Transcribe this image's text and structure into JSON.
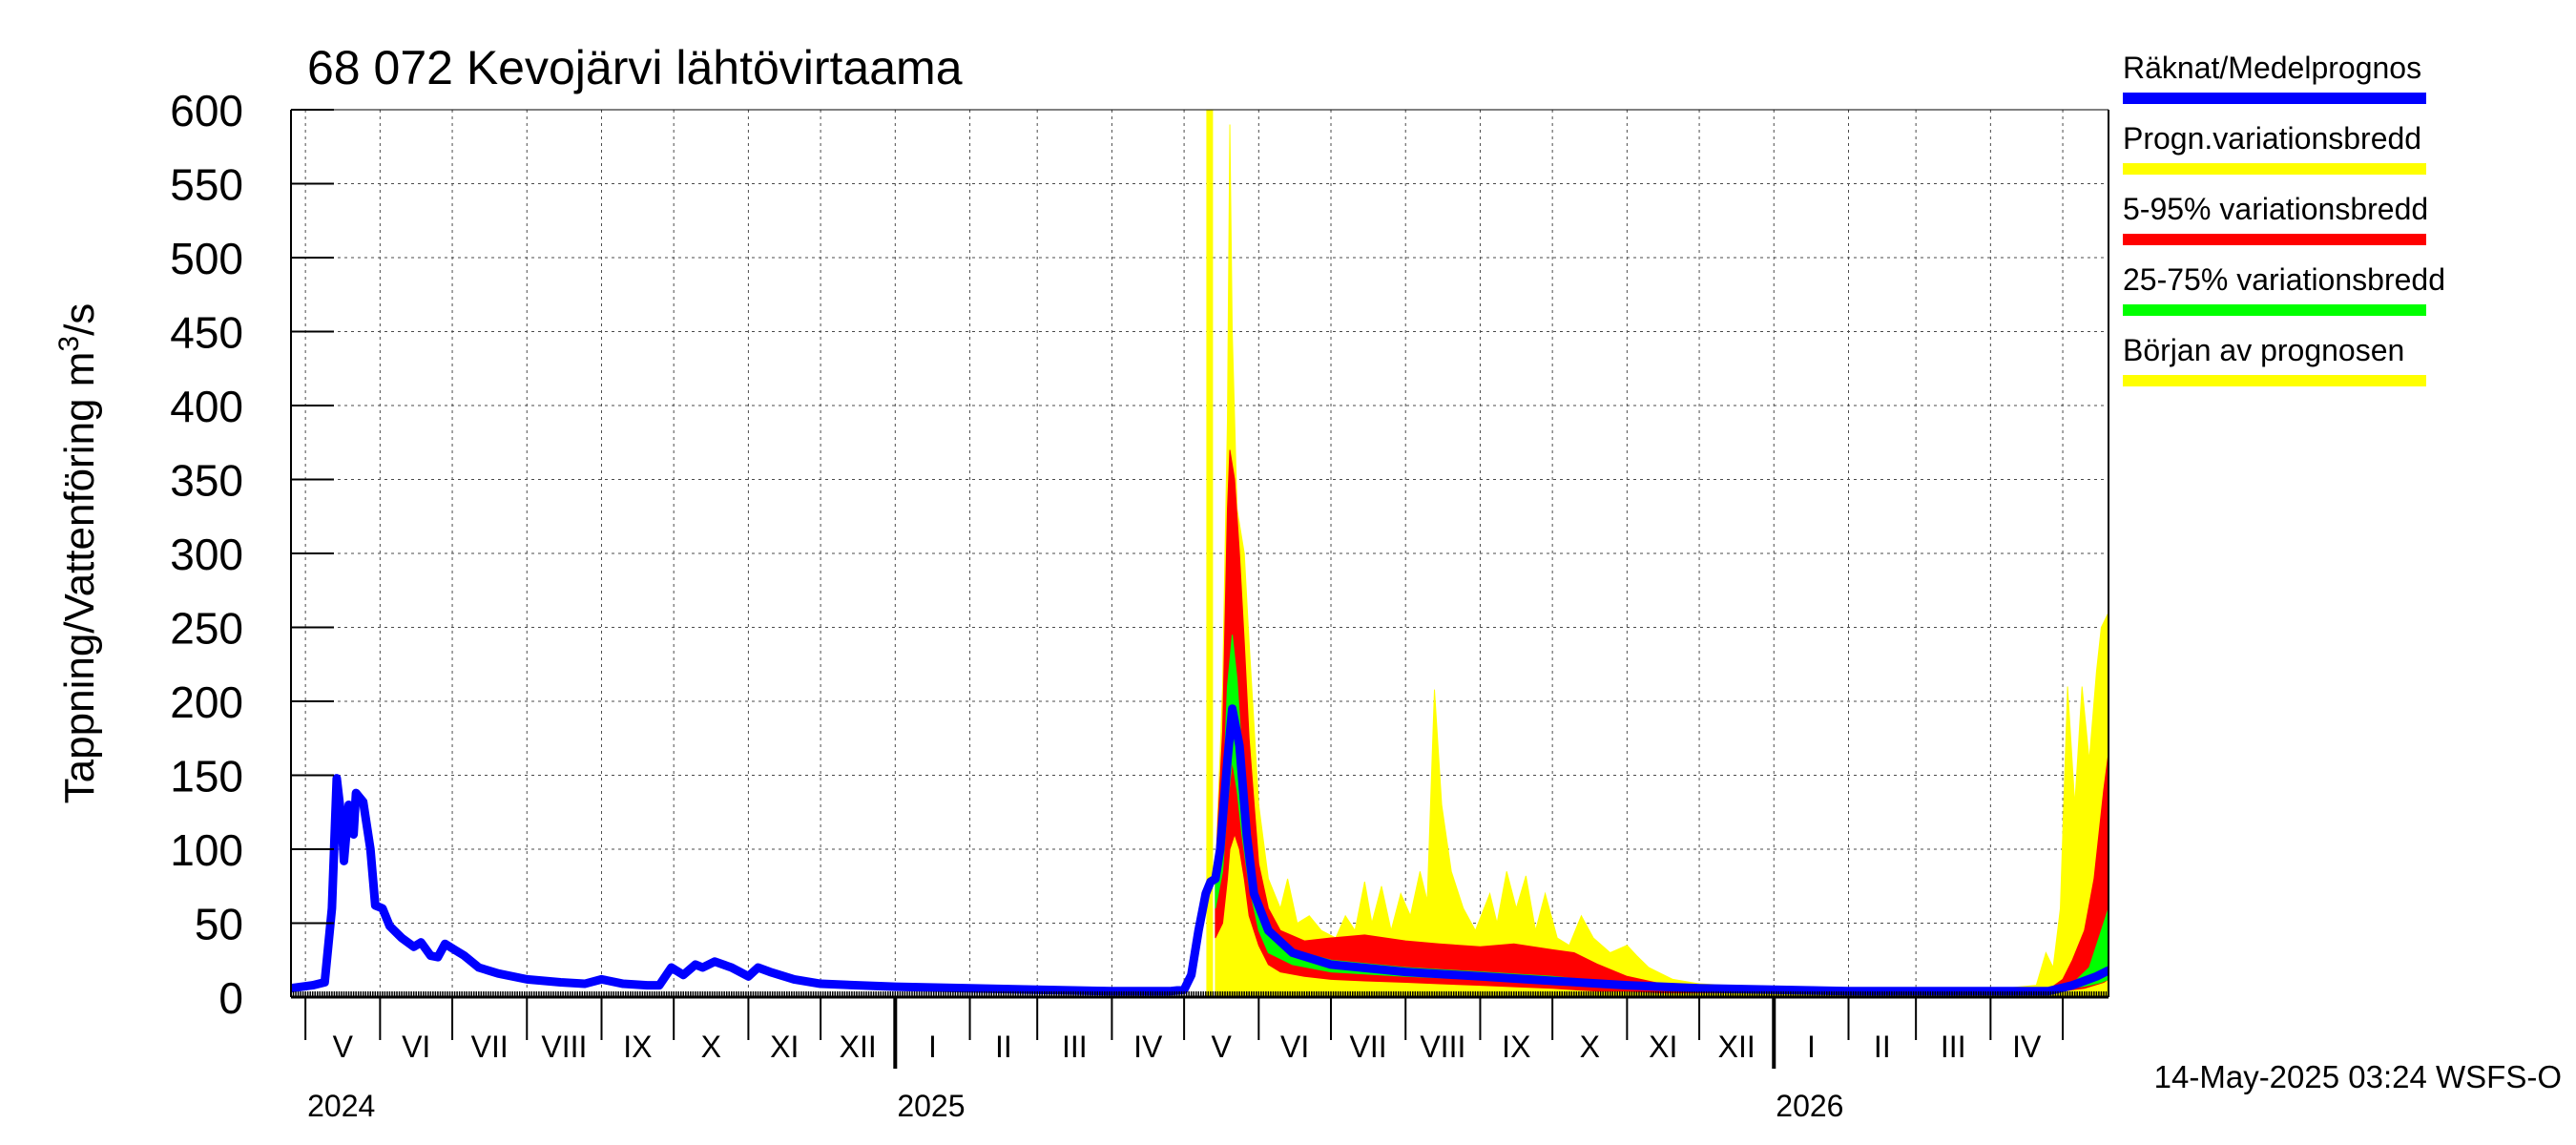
{
  "chart_data": {
    "type": "area",
    "title": "68 072 Kevojärvi lähtövirtaama",
    "ylabel": "Tappning/Vattenföring m³/s",
    "ylim": [
      0,
      600
    ],
    "yticks": [
      0,
      50,
      100,
      150,
      200,
      250,
      300,
      350,
      400,
      450,
      500,
      550,
      600
    ],
    "xlim": [
      "2024-04-25",
      "2026-05-20"
    ],
    "grid": true,
    "month_labels": [
      "V",
      "VI",
      "VII",
      "VIII",
      "IX",
      "X",
      "XI",
      "XII",
      "I",
      "II",
      "III",
      "IV",
      "V",
      "VI",
      "VII",
      "VIII",
      "IX",
      "X",
      "XI",
      "XII",
      "I",
      "II",
      "III",
      "IV"
    ],
    "month_starts": [
      "2024-05-01",
      "2024-06-01",
      "2024-07-01",
      "2024-08-01",
      "2024-09-01",
      "2024-10-01",
      "2024-11-01",
      "2024-12-01",
      "2025-01-01",
      "2025-02-01",
      "2025-03-01",
      "2025-04-01",
      "2025-05-01",
      "2025-06-01",
      "2025-07-01",
      "2025-08-01",
      "2025-09-01",
      "2025-10-01",
      "2025-11-01",
      "2025-12-01",
      "2026-01-01",
      "2026-02-01",
      "2026-03-01",
      "2026-04-01",
      "2026-05-01"
    ],
    "year_labels": [
      {
        "label": "2024",
        "date": "2024-05-01"
      },
      {
        "label": "2025",
        "date": "2025-01-01"
      },
      {
        "label": "2026",
        "date": "2026-01-01"
      }
    ],
    "legend_position": "right",
    "legend": [
      {
        "label": "Räknat/Medelprognos",
        "color": "#0000ff"
      },
      {
        "label": "Progn.variationsbredd",
        "color": "#ffff00"
      },
      {
        "label": "5-95% variationsbredd",
        "color": "#ff0000"
      },
      {
        "label": "25-75% variationsbredd",
        "color": "#00ff00"
      },
      {
        "label": "Början av prognosen",
        "color": "#ffff00"
      }
    ],
    "forecast_start": "2025-05-14",
    "footer": "14-May-2025 03:24 WSFS-O",
    "series": [
      {
        "name": "Räknat/Medelprognos",
        "color": "#0000ff",
        "points": [
          [
            "2024-04-25",
            6
          ],
          [
            "2024-05-04",
            8
          ],
          [
            "2024-05-09",
            10
          ],
          [
            "2024-05-12",
            60
          ],
          [
            "2024-05-14",
            148
          ],
          [
            "2024-05-16",
            120
          ],
          [
            "2024-05-17",
            92
          ],
          [
            "2024-05-19",
            130
          ],
          [
            "2024-05-21",
            110
          ],
          [
            "2024-05-22",
            138
          ],
          [
            "2024-05-25",
            132
          ],
          [
            "2024-05-28",
            100
          ],
          [
            "2024-05-30",
            62
          ],
          [
            "2024-06-02",
            60
          ],
          [
            "2024-06-05",
            48
          ],
          [
            "2024-06-10",
            40
          ],
          [
            "2024-06-15",
            34
          ],
          [
            "2024-06-18",
            37
          ],
          [
            "2024-06-22",
            28
          ],
          [
            "2024-06-25",
            27
          ],
          [
            "2024-06-28",
            36
          ],
          [
            "2024-07-02",
            32
          ],
          [
            "2024-07-06",
            28
          ],
          [
            "2024-07-12",
            20
          ],
          [
            "2024-07-20",
            16
          ],
          [
            "2024-08-01",
            12
          ],
          [
            "2024-08-15",
            10
          ],
          [
            "2024-08-25",
            9
          ],
          [
            "2024-09-01",
            12
          ],
          [
            "2024-09-10",
            9
          ],
          [
            "2024-09-20",
            8
          ],
          [
            "2024-09-25",
            8
          ],
          [
            "2024-09-30",
            20
          ],
          [
            "2024-10-05",
            15
          ],
          [
            "2024-10-10",
            22
          ],
          [
            "2024-10-13",
            20
          ],
          [
            "2024-10-18",
            24
          ],
          [
            "2024-10-25",
            20
          ],
          [
            "2024-11-01",
            14
          ],
          [
            "2024-11-05",
            20
          ],
          [
            "2024-11-10",
            17
          ],
          [
            "2024-11-20",
            12
          ],
          [
            "2024-12-01",
            9
          ],
          [
            "2025-01-01",
            7
          ],
          [
            "2025-02-01",
            6
          ],
          [
            "2025-03-01",
            5
          ],
          [
            "2025-04-01",
            4
          ],
          [
            "2025-04-25",
            4
          ],
          [
            "2025-05-01",
            5
          ],
          [
            "2025-05-04",
            15
          ],
          [
            "2025-05-07",
            45
          ],
          [
            "2025-05-10",
            70
          ],
          [
            "2025-05-12",
            78
          ],
          [
            "2025-05-14",
            80
          ],
          [
            "2025-05-16",
            100
          ],
          [
            "2025-05-19",
            160
          ],
          [
            "2025-05-21",
            195
          ],
          [
            "2025-05-24",
            170
          ],
          [
            "2025-05-27",
            110
          ],
          [
            "2025-05-30",
            70
          ],
          [
            "2025-06-05",
            45
          ],
          [
            "2025-06-15",
            30
          ],
          [
            "2025-07-01",
            22
          ],
          [
            "2025-08-01",
            17
          ],
          [
            "2025-09-01",
            14
          ],
          [
            "2025-10-01",
            11
          ],
          [
            "2025-11-01",
            8
          ],
          [
            "2025-12-01",
            6
          ],
          [
            "2026-01-01",
            5
          ],
          [
            "2026-02-01",
            4
          ],
          [
            "2026-03-01",
            4
          ],
          [
            "2026-04-01",
            4
          ],
          [
            "2026-04-25",
            4
          ],
          [
            "2026-05-05",
            8
          ],
          [
            "2026-05-15",
            14
          ],
          [
            "2026-05-20",
            18
          ]
        ]
      },
      {
        "name": "Progn.variationsbredd",
        "color": "#ffff00",
        "band": [
          [
            "2025-05-14",
            0,
            80
          ],
          [
            "2025-05-17",
            0,
            210
          ],
          [
            "2025-05-19",
            0,
            390
          ],
          [
            "2025-05-20",
            0,
            590
          ],
          [
            "2025-05-21",
            0,
            450
          ],
          [
            "2025-05-23",
            0,
            330
          ],
          [
            "2025-05-26",
            0,
            300
          ],
          [
            "2025-05-28",
            0,
            240
          ],
          [
            "2025-06-01",
            0,
            130
          ],
          [
            "2025-06-05",
            0,
            80
          ],
          [
            "2025-06-10",
            0,
            60
          ],
          [
            "2025-06-13",
            0,
            80
          ],
          [
            "2025-06-17",
            0,
            50
          ],
          [
            "2025-06-22",
            0,
            55
          ],
          [
            "2025-06-27",
            0,
            45
          ],
          [
            "2025-07-03",
            0,
            40
          ],
          [
            "2025-07-07",
            0,
            55
          ],
          [
            "2025-07-11",
            0,
            45
          ],
          [
            "2025-07-15",
            0,
            78
          ],
          [
            "2025-07-18",
            0,
            50
          ],
          [
            "2025-07-22",
            0,
            75
          ],
          [
            "2025-07-26",
            0,
            45
          ],
          [
            "2025-07-30",
            0,
            70
          ],
          [
            "2025-08-03",
            0,
            55
          ],
          [
            "2025-08-07",
            0,
            85
          ],
          [
            "2025-08-10",
            0,
            65
          ],
          [
            "2025-08-13",
            0,
            208
          ],
          [
            "2025-08-16",
            0,
            130
          ],
          [
            "2025-08-20",
            0,
            85
          ],
          [
            "2025-08-25",
            0,
            60
          ],
          [
            "2025-08-30",
            0,
            45
          ],
          [
            "2025-09-05",
            0,
            70
          ],
          [
            "2025-09-08",
            0,
            50
          ],
          [
            "2025-09-12",
            0,
            85
          ],
          [
            "2025-09-16",
            0,
            60
          ],
          [
            "2025-09-20",
            0,
            82
          ],
          [
            "2025-09-24",
            0,
            45
          ],
          [
            "2025-09-28",
            0,
            70
          ],
          [
            "2025-10-03",
            0,
            40
          ],
          [
            "2025-10-08",
            0,
            35
          ],
          [
            "2025-10-13",
            0,
            55
          ],
          [
            "2025-10-18",
            0,
            40
          ],
          [
            "2025-10-25",
            0,
            30
          ],
          [
            "2025-11-01",
            0,
            35
          ],
          [
            "2025-11-05",
            0,
            28
          ],
          [
            "2025-11-10",
            0,
            20
          ],
          [
            "2025-11-20",
            0,
            12
          ],
          [
            "2025-12-01",
            0,
            9
          ],
          [
            "2026-01-01",
            0,
            6
          ],
          [
            "2026-02-01",
            0,
            5
          ],
          [
            "2026-03-01",
            0,
            5
          ],
          [
            "2026-04-01",
            0,
            5
          ],
          [
            "2026-04-20",
            0,
            8
          ],
          [
            "2026-04-24",
            0,
            30
          ],
          [
            "2026-04-27",
            0,
            20
          ],
          [
            "2026-04-30",
            0,
            60
          ],
          [
            "2026-05-03",
            0,
            210
          ],
          [
            "2026-05-06",
            0,
            130
          ],
          [
            "2026-05-09",
            0,
            210
          ],
          [
            "2026-05-12",
            0,
            160
          ],
          [
            "2026-05-15",
            0,
            220
          ],
          [
            "2026-05-17",
            0,
            250
          ],
          [
            "2026-05-20",
            0,
            260
          ]
        ]
      },
      {
        "name": "5-95% variationsbredd",
        "color": "#ff0000",
        "band": [
          [
            "2025-05-14",
            40,
            85
          ],
          [
            "2025-05-17",
            50,
            180
          ],
          [
            "2025-05-19",
            80,
            330
          ],
          [
            "2025-05-20",
            100,
            370
          ],
          [
            "2025-05-22",
            110,
            350
          ],
          [
            "2025-05-24",
            100,
            300
          ],
          [
            "2025-05-26",
            80,
            240
          ],
          [
            "2025-05-28",
            55,
            175
          ],
          [
            "2025-06-01",
            35,
            90
          ],
          [
            "2025-06-05",
            22,
            60
          ],
          [
            "2025-06-10",
            17,
            45
          ],
          [
            "2025-06-20",
            14,
            38
          ],
          [
            "2025-07-01",
            12,
            40
          ],
          [
            "2025-07-15",
            11,
            42
          ],
          [
            "2025-08-01",
            10,
            38
          ],
          [
            "2025-08-15",
            9,
            36
          ],
          [
            "2025-09-01",
            8,
            34
          ],
          [
            "2025-09-15",
            7,
            36
          ],
          [
            "2025-10-01",
            6,
            32
          ],
          [
            "2025-10-10",
            5,
            30
          ],
          [
            "2025-10-20",
            4,
            22
          ],
          [
            "2025-11-01",
            4,
            14
          ],
          [
            "2025-11-15",
            3,
            9
          ],
          [
            "2025-12-01",
            3,
            7
          ],
          [
            "2026-01-01",
            3,
            5
          ],
          [
            "2026-02-01",
            3,
            4
          ],
          [
            "2026-03-01",
            3,
            4
          ],
          [
            "2026-04-01",
            3,
            4
          ],
          [
            "2026-04-25",
            3,
            5
          ],
          [
            "2026-05-01",
            4,
            12
          ],
          [
            "2026-05-05",
            5,
            25
          ],
          [
            "2026-05-10",
            6,
            45
          ],
          [
            "2026-05-14",
            8,
            80
          ],
          [
            "2026-05-18",
            10,
            140
          ],
          [
            "2026-05-20",
            12,
            165
          ]
        ]
      },
      {
        "name": "25-75% variationsbredd",
        "color": "#00ff00",
        "band": [
          [
            "2025-05-14",
            60,
            80
          ],
          [
            "2025-05-17",
            85,
            130
          ],
          [
            "2025-05-19",
            130,
            210
          ],
          [
            "2025-05-21",
            160,
            245
          ],
          [
            "2025-05-23",
            140,
            215
          ],
          [
            "2025-05-25",
            110,
            165
          ],
          [
            "2025-05-28",
            75,
            110
          ],
          [
            "2025-06-01",
            45,
            65
          ],
          [
            "2025-06-05",
            30,
            42
          ],
          [
            "2025-06-15",
            22,
            32
          ],
          [
            "2025-07-01",
            17,
            25
          ],
          [
            "2025-08-01",
            14,
            20
          ],
          [
            "2025-09-01",
            12,
            17
          ],
          [
            "2025-10-01",
            9,
            14
          ],
          [
            "2025-11-01",
            6,
            9
          ],
          [
            "2025-12-01",
            5,
            7
          ],
          [
            "2026-01-01",
            4,
            5
          ],
          [
            "2026-04-01",
            4,
            5
          ],
          [
            "2026-04-25",
            4,
            5
          ],
          [
            "2026-05-05",
            6,
            9
          ],
          [
            "2026-05-12",
            8,
            20
          ],
          [
            "2026-05-17",
            10,
            45
          ],
          [
            "2026-05-20",
            12,
            60
          ]
        ]
      }
    ]
  }
}
